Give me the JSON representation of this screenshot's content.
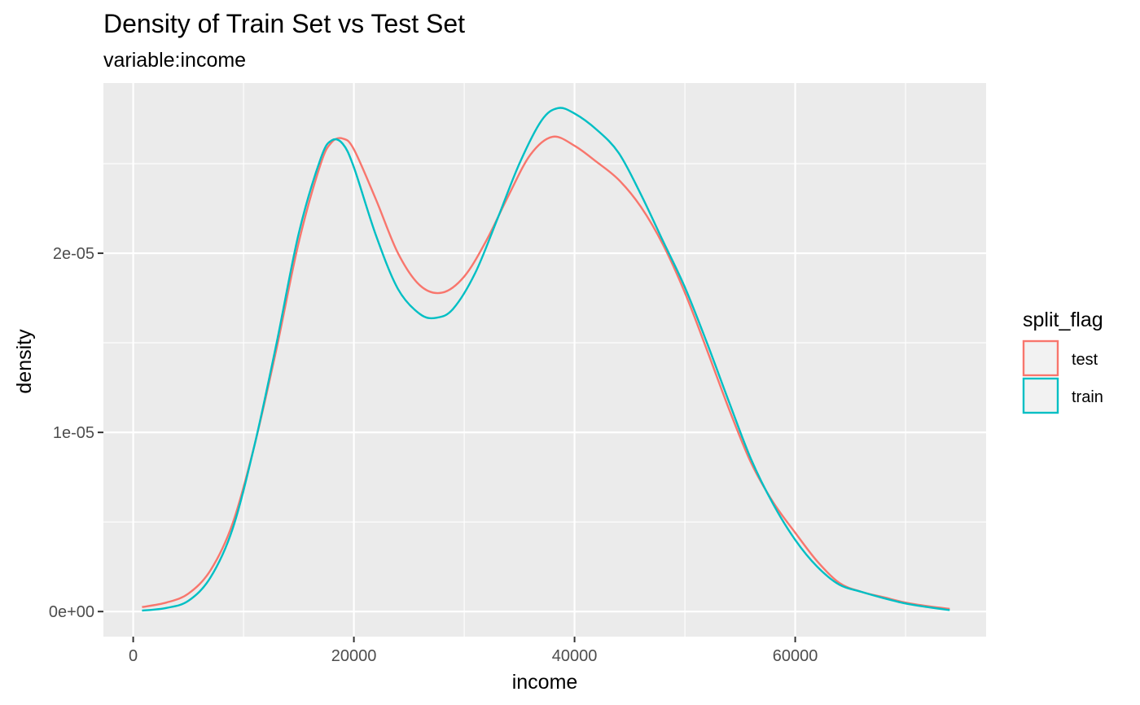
{
  "chart_data": {
    "type": "line",
    "title": "Density of Train Set vs Test Set",
    "subtitle": "variable:income",
    "xlabel": "income",
    "ylabel": "density",
    "xlim": [
      -2700,
      77300
    ],
    "ylim": [
      -1.4e-06,
      2.95e-05
    ],
    "x_ticks": [
      {
        "value": 0,
        "label": "0"
      },
      {
        "value": 20000,
        "label": "20000"
      },
      {
        "value": 40000,
        "label": "40000"
      },
      {
        "value": 60000,
        "label": "60000"
      }
    ],
    "y_ticks": [
      {
        "value": 0,
        "label": "0e+00"
      },
      {
        "value": 1e-05,
        "label": "1e-05"
      },
      {
        "value": 2e-05,
        "label": "2e-05"
      }
    ],
    "grid": true,
    "legend": {
      "title": "split_flag",
      "placement": "right"
    },
    "colors": {
      "panel": "#EBEBEB",
      "test": "#F8766D",
      "train": "#00BFC4"
    },
    "series": [
      {
        "name": "test",
        "color": "#F8766D",
        "x": [
          800,
          3000,
          5000,
          7000,
          9000,
          11000,
          13000,
          15000,
          17000,
          18000,
          19000,
          20000,
          22000,
          24000,
          26000,
          28000,
          30000,
          32000,
          34000,
          36000,
          38000,
          40000,
          42000,
          44000,
          46000,
          48000,
          50000,
          52000,
          54000,
          56000,
          58000,
          60000,
          62000,
          64000,
          66000,
          68000,
          70000,
          72000,
          74000
        ],
        "values": [
          2.5e-07,
          5e-07,
          1e-06,
          2.3e-06,
          4.9e-06,
          9.3e-06,
          1.47e-05,
          2.06e-05,
          2.5e-05,
          2.62e-05,
          2.64e-05,
          2.58e-05,
          2.3e-05,
          2e-05,
          1.82e-05,
          1.78e-05,
          1.87e-05,
          2.07e-05,
          2.32e-05,
          2.55e-05,
          2.65e-05,
          2.6e-05,
          2.51e-05,
          2.41e-05,
          2.26e-05,
          2.05e-05,
          1.78e-05,
          1.46e-05,
          1.13e-05,
          8.3e-06,
          6.1e-06,
          4.4e-06,
          2.8e-06,
          1.6e-06,
          1.1e-06,
          8e-07,
          5e-07,
          3e-07,
          1.5e-07
        ]
      },
      {
        "name": "train",
        "color": "#00BFC4",
        "x": [
          800,
          3000,
          5000,
          7000,
          9000,
          11000,
          13000,
          15000,
          17000,
          18000,
          19000,
          20000,
          22000,
          24000,
          26000,
          27500,
          29000,
          31000,
          33000,
          35000,
          37000,
          38500,
          40000,
          42000,
          44000,
          46000,
          48000,
          50000,
          52000,
          54000,
          56000,
          58000,
          60000,
          62000,
          64000,
          66000,
          68000,
          70000,
          72000,
          74000
        ],
        "values": [
          5e-08,
          2e-07,
          6e-07,
          1.9e-06,
          4.6e-06,
          9.3e-06,
          1.5e-05,
          2.11e-05,
          2.53e-05,
          2.63e-05,
          2.61e-05,
          2.48e-05,
          2.1e-05,
          1.8e-05,
          1.66e-05,
          1.64e-05,
          1.69e-05,
          1.89e-05,
          2.19e-05,
          2.5e-05,
          2.74e-05,
          2.81e-05,
          2.78e-05,
          2.69e-05,
          2.56e-05,
          2.33e-05,
          2.07e-05,
          1.81e-05,
          1.5e-05,
          1.17e-05,
          8.5e-06,
          6e-06,
          4e-06,
          2.5e-06,
          1.5e-06,
          1.1e-06,
          7.5e-07,
          4.5e-07,
          2.5e-07,
          8e-08
        ]
      }
    ]
  }
}
